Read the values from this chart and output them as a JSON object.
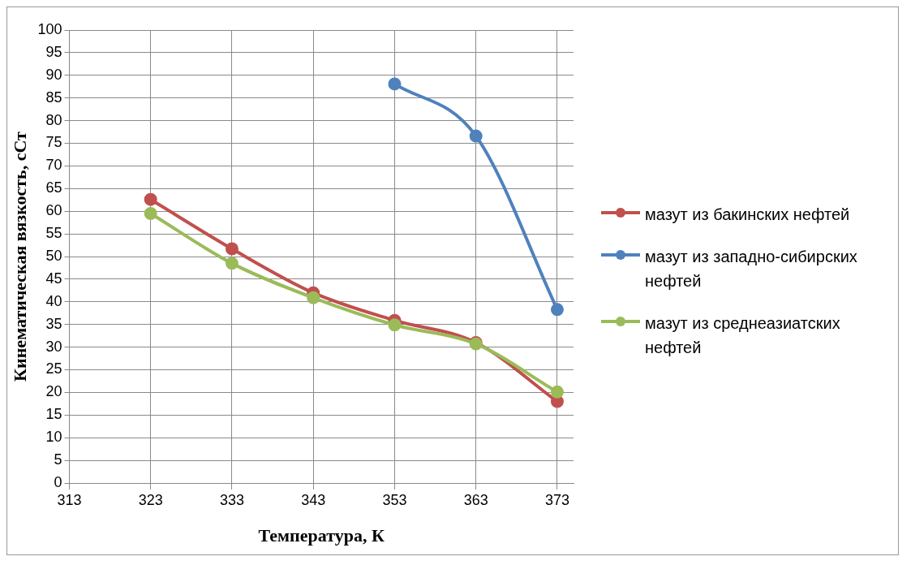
{
  "chart_data": {
    "type": "line",
    "xlabel": "Температура, К",
    "ylabel": "Кинематическая вязкость, сСт",
    "xlim": [
      313,
      375
    ],
    "xticks": [
      313,
      323,
      333,
      343,
      353,
      363,
      373
    ],
    "ylim": [
      0,
      100
    ],
    "yticks": [
      0,
      5,
      10,
      15,
      20,
      25,
      30,
      35,
      40,
      45,
      50,
      55,
      60,
      65,
      70,
      75,
      80,
      85,
      90,
      95,
      100
    ],
    "grid": true,
    "legend": "right",
    "marker": "circle",
    "series": [
      {
        "name": "мазут из бакинских нефтей",
        "color": "#c0504d",
        "x": [
          323,
          333,
          343,
          353,
          363,
          373
        ],
        "values": [
          62.6,
          51.7,
          42,
          35.9,
          31,
          18
        ]
      },
      {
        "name": "мазут из западно-сибирских нефтей",
        "color": "#4f81bd",
        "x": [
          353,
          363,
          373
        ],
        "values": [
          88.1,
          76.6,
          38.3
        ]
      },
      {
        "name": "мазут из среднеазиатских нефтей",
        "color": "#9bbb59",
        "x": [
          323,
          333,
          343,
          353,
          363,
          373
        ],
        "values": [
          59.5,
          48.5,
          40.9,
          34.9,
          30.7,
          20.1
        ]
      }
    ]
  }
}
